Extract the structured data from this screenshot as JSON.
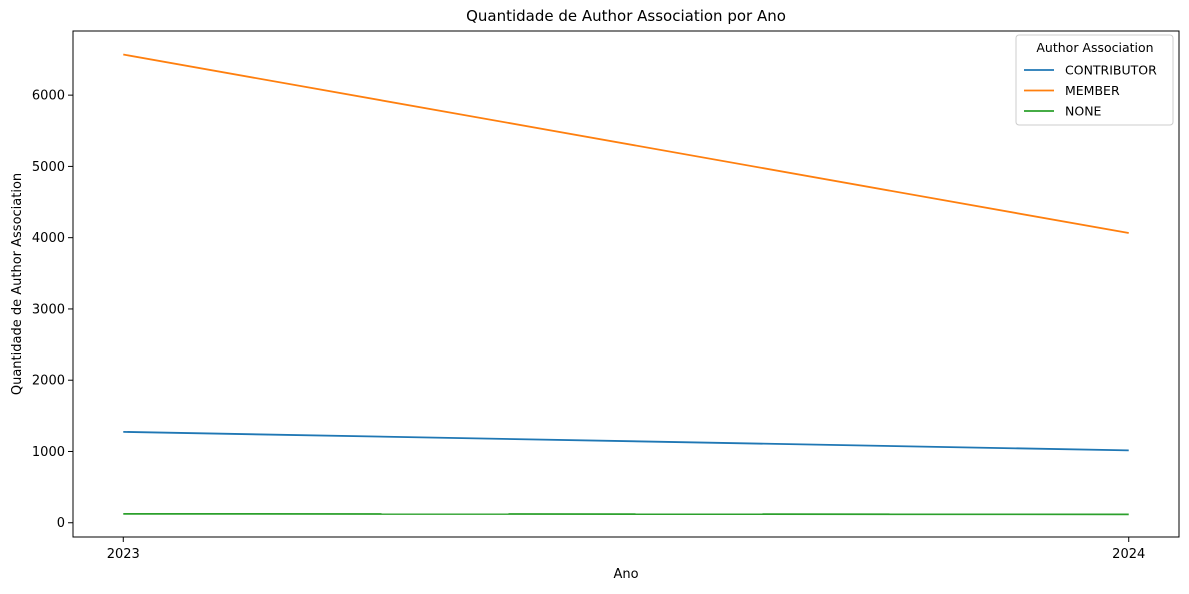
{
  "chart_data": {
    "type": "line",
    "title": "Quantidade de Author Association por Ano",
    "xlabel": "Ano",
    "ylabel": "Quantidade de Author Association",
    "categories": [
      "2023",
      "2024"
    ],
    "x": [
      2023,
      2024
    ],
    "xlim": [
      2022.95,
      2024.05
    ],
    "ylim": [
      -200,
      6900
    ],
    "yticks": [
      0,
      1000,
      2000,
      3000,
      4000,
      5000,
      6000
    ],
    "grid": false,
    "legend": {
      "title": "Author Association",
      "placement": "top-right"
    },
    "series": [
      {
        "name": "CONTRIBUTOR",
        "values": [
          1275,
          1015
        ],
        "color": "#1f77b4"
      },
      {
        "name": "MEMBER",
        "values": [
          6570,
          4065
        ],
        "color": "#ff7f0e"
      },
      {
        "name": "NONE",
        "values": [
          125,
          118
        ],
        "color": "#2ca02c"
      }
    ]
  }
}
